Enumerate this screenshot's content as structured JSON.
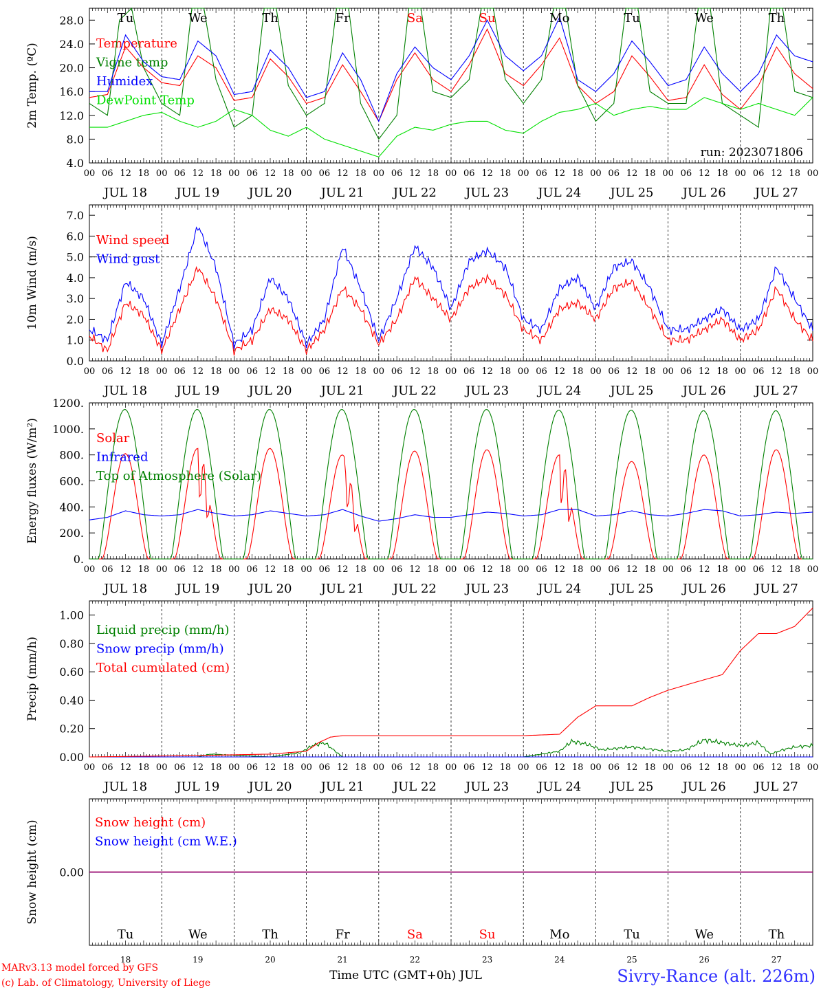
{
  "footer": {
    "model_line": "MARv3.13 model forced by GFS",
    "lab_line": "(c) Lab. of Climatology, University of Liege",
    "xaxis_title": "Time UTC (GMT+0h) JUL",
    "station": "Sivry-Rance (alt. 226m)"
  },
  "run_label": "run: 2023071806",
  "days": [
    {
      "abbr": "Tu",
      "date": "JUL 18",
      "num": "18",
      "weekend": false
    },
    {
      "abbr": "We",
      "date": "JUL 19",
      "num": "19",
      "weekend": false
    },
    {
      "abbr": "Th",
      "date": "JUL 20",
      "num": "20",
      "weekend": false
    },
    {
      "abbr": "Fr",
      "date": "JUL 21",
      "num": "21",
      "weekend": false
    },
    {
      "abbr": "Sa",
      "date": "JUL 22",
      "num": "22",
      "weekend": true
    },
    {
      "abbr": "Su",
      "date": "JUL 23",
      "num": "23",
      "weekend": true
    },
    {
      "abbr": "Mo",
      "date": "JUL 24",
      "num": "24",
      "weekend": false
    },
    {
      "abbr": "Tu",
      "date": "JUL 25",
      "num": "25",
      "weekend": false
    },
    {
      "abbr": "We",
      "date": "JUL 26",
      "num": "26",
      "weekend": false
    },
    {
      "abbr": "Th",
      "date": "JUL 27",
      "num": "27",
      "weekend": false
    }
  ],
  "hour_ticks": [
    "00",
    "06",
    "12",
    "18"
  ],
  "hour_ticks_end": "00",
  "colors": {
    "red": "#ff0000",
    "blue": "#0000ff",
    "green": "#008000",
    "lightgreen": "#00e000",
    "weekend": "#ff0000",
    "purple": "#800080"
  },
  "chart_data": [
    {
      "id": "temperature",
      "type": "line",
      "ylabel": "2m Temp. (ºC)",
      "ylim": [
        4,
        30
      ],
      "yticks": [
        "4.0",
        "8.0",
        "12.0",
        "16.0",
        "20.0",
        "24.0",
        "28.0"
      ],
      "x_units": "hours since JUL 18 00 UTC",
      "series": [
        {
          "name": "Temperature",
          "color": "#ff0000",
          "x": [
            0,
            6,
            12,
            18,
            24,
            30,
            36,
            42,
            48,
            54,
            60,
            66,
            72,
            78,
            84,
            90,
            96,
            102,
            108,
            114,
            120,
            126,
            132,
            138,
            144,
            150,
            156,
            162,
            168,
            174,
            180,
            186,
            192,
            198,
            204,
            210,
            216,
            222,
            228,
            234,
            240
          ],
          "values": [
            15,
            15.5,
            23.5,
            20,
            17.5,
            17,
            22,
            20,
            14.5,
            15,
            21.5,
            18.5,
            14,
            15,
            20.5,
            16,
            11,
            18,
            22.5,
            18,
            16,
            20.5,
            26.5,
            19,
            17,
            20.5,
            25,
            17,
            14,
            16,
            22,
            18.5,
            14.5,
            15,
            20.5,
            15.5,
            13,
            17,
            23.5,
            19,
            16.5
          ]
        },
        {
          "name": "Vigne temp",
          "color": "#008000",
          "x": [
            0,
            6,
            10,
            14,
            18,
            24,
            30,
            34,
            38,
            42,
            48,
            54,
            58,
            62,
            66,
            72,
            78,
            82,
            86,
            90,
            96,
            102,
            106,
            110,
            114,
            120,
            126,
            130,
            134,
            138,
            144,
            150,
            154,
            158,
            162,
            168,
            174,
            178,
            182,
            186,
            192,
            198,
            202,
            206,
            210,
            216,
            222,
            226,
            230,
            234,
            240
          ],
          "values": [
            14,
            12,
            28,
            30,
            20,
            14,
            12,
            30,
            30,
            18,
            10,
            12,
            30,
            30,
            17,
            12,
            14,
            30,
            30,
            14,
            8,
            12,
            30,
            30,
            16,
            15,
            18,
            30,
            30,
            18,
            14,
            18,
            30,
            30,
            17,
            11,
            14,
            30,
            30,
            16,
            14,
            14,
            30,
            30,
            14,
            12,
            10,
            30,
            30,
            16,
            15
          ]
        },
        {
          "name": "Humidex",
          "color": "#0000ff",
          "x": [
            0,
            6,
            12,
            18,
            24,
            30,
            36,
            42,
            48,
            54,
            60,
            66,
            72,
            78,
            84,
            90,
            96,
            102,
            108,
            114,
            120,
            126,
            132,
            138,
            144,
            150,
            156,
            162,
            168,
            174,
            180,
            186,
            192,
            198,
            204,
            210,
            216,
            222,
            228,
            234,
            240
          ],
          "values": [
            16,
            16,
            25.5,
            21,
            18.5,
            18,
            24.5,
            22,
            15.5,
            16,
            23,
            20,
            15,
            16,
            22.5,
            18,
            11,
            19,
            23.5,
            20,
            18,
            22,
            28,
            22,
            19.5,
            22,
            28.5,
            18,
            16,
            19,
            24.5,
            21,
            17,
            18,
            23.5,
            19,
            16,
            19,
            25.5,
            22,
            21
          ]
        },
        {
          "name": "DewPoint Temp",
          "color": "#00e000",
          "x": [
            0,
            6,
            12,
            18,
            24,
            30,
            36,
            42,
            48,
            54,
            60,
            66,
            72,
            78,
            84,
            90,
            96,
            102,
            108,
            114,
            120,
            126,
            132,
            138,
            144,
            150,
            156,
            162,
            168,
            174,
            180,
            186,
            192,
            198,
            204,
            210,
            216,
            222,
            228,
            234,
            240
          ],
          "values": [
            10,
            10,
            11,
            12,
            12.5,
            11,
            10,
            11,
            13,
            12,
            9.5,
            8.5,
            10,
            8,
            7,
            6,
            5,
            8.5,
            10,
            9.5,
            10.5,
            11,
            11,
            9.5,
            9,
            11,
            12.5,
            13,
            14,
            12,
            13,
            13.5,
            13,
            13,
            15,
            14,
            13,
            14,
            13,
            12,
            15
          ]
        }
      ]
    },
    {
      "id": "wind",
      "type": "line",
      "ylabel": "10m Wind (m/s)",
      "ylim": [
        0,
        7.5
      ],
      "yticks": [
        "0.0",
        "1.0",
        "2.0",
        "3.0",
        "4.0",
        "5.0",
        "6.0",
        "7.0"
      ],
      "ref_line": 5.0,
      "series": [
        {
          "name": "Wind speed",
          "color": "#ff0000",
          "x": [
            0,
            6,
            12,
            18,
            24,
            30,
            36,
            42,
            48,
            54,
            60,
            66,
            72,
            78,
            84,
            90,
            96,
            102,
            108,
            114,
            120,
            126,
            132,
            138,
            144,
            150,
            156,
            162,
            168,
            174,
            180,
            186,
            192,
            198,
            204,
            210,
            216,
            222,
            228,
            234,
            240
          ],
          "values": [
            1.2,
            0.5,
            2.8,
            2.2,
            0.5,
            2.5,
            4.5,
            3,
            0.5,
            1,
            2.5,
            2,
            0.5,
            1.5,
            3.5,
            2.5,
            0.8,
            2,
            4,
            3,
            2,
            3.5,
            4,
            3.2,
            1.5,
            1,
            2.5,
            2.8,
            2,
            3.5,
            3.8,
            2.5,
            1,
            1,
            1.5,
            2,
            1,
            1.5,
            3.5,
            2,
            1
          ]
        },
        {
          "name": "Wind gust",
          "color": "#0000ff",
          "x": [
            0,
            6,
            12,
            18,
            24,
            30,
            36,
            42,
            48,
            54,
            60,
            66,
            72,
            78,
            84,
            90,
            96,
            102,
            108,
            114,
            120,
            126,
            132,
            138,
            144,
            150,
            156,
            162,
            168,
            174,
            180,
            186,
            192,
            198,
            204,
            210,
            216,
            222,
            228,
            234,
            240
          ],
          "values": [
            1.5,
            1,
            3.8,
            3,
            0.8,
            3.5,
            6.5,
            4.5,
            0.8,
            1.5,
            4,
            3,
            0.8,
            2,
            5.5,
            3.5,
            1,
            3,
            5.5,
            4.5,
            2.5,
            4.8,
            5.3,
            4.5,
            2,
            1.5,
            3.5,
            4,
            2.5,
            4.5,
            4.8,
            3.5,
            1.5,
            1.5,
            2,
            2.5,
            1.5,
            2,
            4.5,
            3,
            1.5
          ]
        }
      ]
    },
    {
      "id": "energy",
      "type": "line",
      "ylabel": "Energy fluxes (W/m²)",
      "ylim": [
        0,
        1200
      ],
      "yticks": [
        "0.",
        "200.",
        "400.",
        "600.",
        "800.",
        "1000.",
        "1200."
      ],
      "series": [
        {
          "name": "Solar",
          "color": "#ff0000",
          "daily_peak": [
            810,
            850,
            850,
            800,
            830,
            840,
            800,
            750,
            800,
            840
          ]
        },
        {
          "name": "Infrared",
          "color": "#0000ff",
          "x": [
            0,
            6,
            12,
            18,
            24,
            30,
            36,
            42,
            48,
            54,
            60,
            66,
            72,
            78,
            84,
            90,
            96,
            102,
            108,
            114,
            120,
            126,
            132,
            138,
            144,
            150,
            156,
            162,
            168,
            174,
            180,
            186,
            192,
            198,
            204,
            210,
            216,
            222,
            228,
            234,
            240
          ],
          "values": [
            300,
            320,
            370,
            340,
            330,
            340,
            380,
            350,
            330,
            340,
            370,
            350,
            330,
            340,
            380,
            330,
            290,
            310,
            340,
            320,
            320,
            340,
            360,
            350,
            330,
            340,
            380,
            380,
            330,
            340,
            370,
            340,
            330,
            350,
            380,
            370,
            330,
            340,
            360,
            350,
            360
          ]
        },
        {
          "name": "Top of Atmosphere (Solar)",
          "color": "#008000",
          "daily_peak": [
            1150,
            1150,
            1150,
            1150,
            1150,
            1150,
            1145,
            1145,
            1140,
            1140
          ]
        }
      ]
    },
    {
      "id": "precip",
      "type": "line",
      "ylabel": "Precip (mm/h)",
      "ylim": [
        0,
        1.1
      ],
      "yticks": [
        "0.00",
        "0.20",
        "0.40",
        "0.60",
        "0.80",
        "1.00"
      ],
      "series": [
        {
          "name": "Liquid precip (mm/h)",
          "color": "#008000",
          "x": [
            0,
            36,
            40,
            60,
            70,
            74,
            78,
            84,
            144,
            156,
            160,
            165,
            170,
            180,
            192,
            198,
            204,
            216,
            222,
            226,
            230,
            234,
            240
          ],
          "values": [
            0,
            0,
            0.02,
            0,
            0.03,
            0.08,
            0.1,
            0,
            0,
            0.04,
            0.11,
            0.09,
            0.05,
            0.07,
            0.04,
            0.05,
            0.12,
            0.08,
            0.1,
            0.02,
            0.05,
            0.07,
            0.08
          ]
        },
        {
          "name": "Snow precip (mm/h)",
          "color": "#0000ff",
          "x": [
            0,
            240
          ],
          "values": [
            0,
            0
          ]
        },
        {
          "name": "Total cumulated (cm)",
          "color": "#ff0000",
          "x": [
            0,
            36,
            60,
            72,
            76,
            80,
            84,
            96,
            120,
            144,
            156,
            162,
            168,
            180,
            186,
            192,
            200,
            210,
            216,
            222,
            228,
            234,
            240
          ],
          "values": [
            0,
            0.01,
            0.02,
            0.04,
            0.1,
            0.14,
            0.15,
            0.15,
            0.15,
            0.15,
            0.16,
            0.28,
            0.36,
            0.36,
            0.42,
            0.47,
            0.52,
            0.58,
            0.75,
            0.87,
            0.87,
            0.92,
            1.05
          ]
        }
      ]
    },
    {
      "id": "snow",
      "type": "line",
      "ylabel": "Snow height (cm)",
      "ylim": [
        -1,
        1
      ],
      "yticks": [
        "0.00"
      ],
      "series": [
        {
          "name": "Snow height (cm)",
          "color": "#ff0000",
          "x": [
            0,
            240
          ],
          "values": [
            0,
            0
          ]
        },
        {
          "name": "Snow height (cm W.E.)",
          "color": "#0000ff",
          "x": [
            0,
            240
          ],
          "values": [
            0,
            0
          ]
        }
      ]
    }
  ]
}
